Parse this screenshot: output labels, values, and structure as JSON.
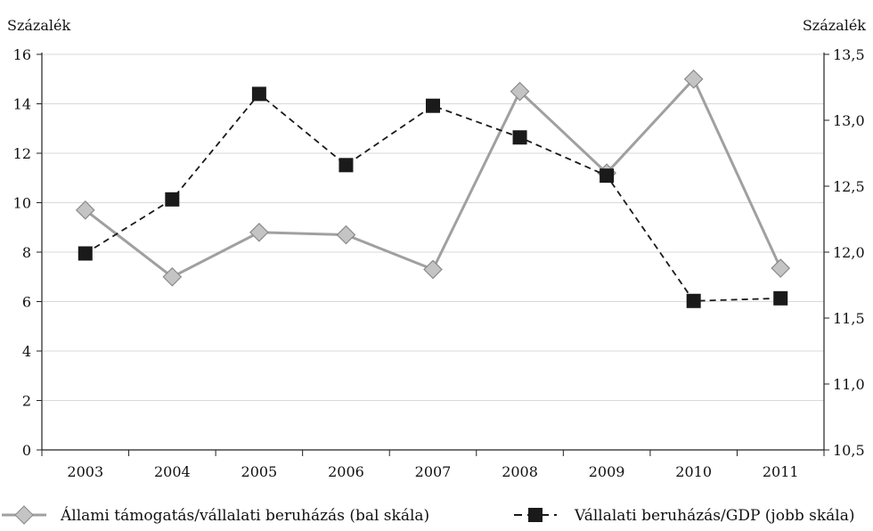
{
  "chart_data": {
    "type": "line",
    "y_left_label": "Százalék",
    "y_right_label": "Százalék",
    "categories": [
      "2003",
      "2004",
      "2005",
      "2006",
      "2007",
      "2008",
      "2009",
      "2010",
      "2011"
    ],
    "y_left_lim": [
      0,
      16
    ],
    "y_left_ticks": [
      "0",
      "2",
      "4",
      "6",
      "8",
      "10",
      "12",
      "14",
      "16"
    ],
    "y_right_lim": [
      10.5,
      13.5
    ],
    "y_right_ticks": [
      "10,5",
      "11,0",
      "11,5",
      "12,0",
      "12,5",
      "13,0",
      "13,5"
    ],
    "grid": true,
    "legend_position": "bottom",
    "series": [
      {
        "name": "Állami támogatás/vállalati beruházás (bal skála)",
        "axis": "left",
        "values": [
          9.7,
          7.0,
          8.8,
          8.7,
          7.3,
          14.5,
          11.2,
          15.0,
          7.35
        ],
        "color": "#a0a0a0",
        "marker": "diamond",
        "line_style": "solid"
      },
      {
        "name": "Vállalati beruházás/GDP (jobb skála)",
        "axis": "right",
        "values": [
          11.99,
          12.4,
          13.2,
          12.66,
          13.11,
          12.87,
          12.58,
          11.63,
          11.65
        ],
        "color": "#1a1a1a",
        "marker": "square",
        "line_style": "dashed"
      }
    ]
  }
}
